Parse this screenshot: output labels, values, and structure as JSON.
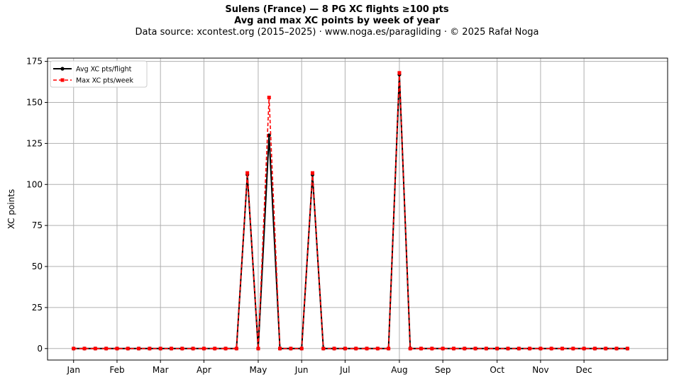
{
  "chart_data": {
    "type": "line",
    "title": "Sulens (France)  —  8 PG XC flights ≥100 pts",
    "subtitle": "Avg and max XC points by week of year",
    "source_line": "Data source: xcontest.org (2015–2025)  ·  www.noga.es/paragliding  ·  © 2025 Rafał Noga",
    "xlabel": "",
    "ylabel": "XC points",
    "ylim": [
      -7,
      177
    ],
    "y_ticks": [
      0,
      25,
      50,
      75,
      100,
      125,
      150,
      175
    ],
    "x_range": [
      -2.4,
      54.7
    ],
    "month_ticks": [
      {
        "label": "Jan",
        "week": 0
      },
      {
        "label": "Feb",
        "week": 4
      },
      {
        "label": "Mar",
        "week": 8
      },
      {
        "label": "Apr",
        "week": 12
      },
      {
        "label": "May",
        "week": 17
      },
      {
        "label": "Jun",
        "week": 21
      },
      {
        "label": "Jul",
        "week": 25
      },
      {
        "label": "Aug",
        "week": 30
      },
      {
        "label": "Sep",
        "week": 34
      },
      {
        "label": "Oct",
        "week": 39
      },
      {
        "label": "Nov",
        "week": 43
      },
      {
        "label": "Dec",
        "week": 47
      }
    ],
    "grid": true,
    "legend_position": "top-left",
    "x": [
      0,
      1,
      2,
      3,
      4,
      5,
      6,
      7,
      8,
      9,
      10,
      11,
      12,
      13,
      14,
      15,
      16,
      17,
      18,
      19,
      20,
      21,
      22,
      23,
      24,
      25,
      26,
      27,
      28,
      29,
      30,
      31,
      32,
      33,
      34,
      35,
      36,
      37,
      38,
      39,
      40,
      41,
      42,
      43,
      44,
      45,
      46,
      47,
      48,
      49,
      50,
      51
    ],
    "series": [
      {
        "name": "Avg XC pts/flight",
        "color": "#000000",
        "marker": "circle",
        "style": "solid",
        "values": [
          0,
          0,
          0,
          0,
          0,
          0,
          0,
          0,
          0,
          0,
          0,
          0,
          0,
          0,
          0,
          0,
          106,
          0,
          130,
          0,
          0,
          0,
          106,
          0,
          0,
          0,
          0,
          0,
          0,
          0,
          167,
          0,
          0,
          0,
          0,
          0,
          0,
          0,
          0,
          0,
          0,
          0,
          0,
          0,
          0,
          0,
          0,
          0,
          0,
          0,
          0,
          0
        ]
      },
      {
        "name": "Max XC pts/week",
        "color": "#ff0000",
        "marker": "square",
        "style": "dashed",
        "values": [
          0,
          0,
          0,
          0,
          0,
          0,
          0,
          0,
          0,
          0,
          0,
          0,
          0,
          0,
          0,
          0,
          107,
          0,
          153,
          0,
          0,
          0,
          107,
          0,
          0,
          0,
          0,
          0,
          0,
          0,
          168,
          0,
          0,
          0,
          0,
          0,
          0,
          0,
          0,
          0,
          0,
          0,
          0,
          0,
          0,
          0,
          0,
          0,
          0,
          0,
          0,
          0
        ]
      }
    ]
  }
}
